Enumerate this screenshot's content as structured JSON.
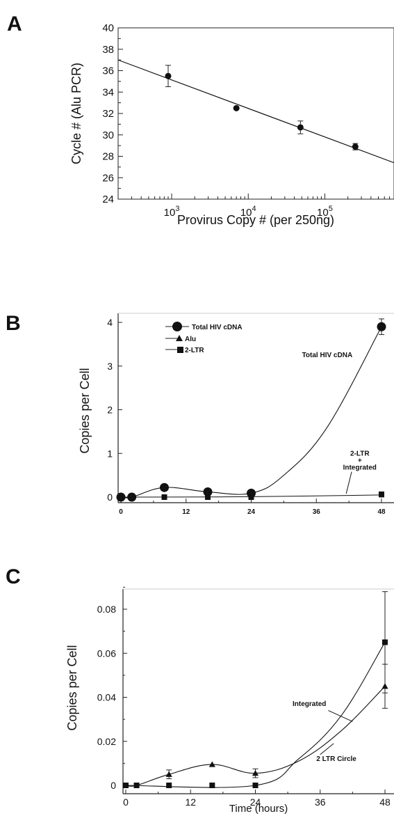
{
  "chart_data": [
    {
      "panel": "A",
      "type": "scatter",
      "xscale": "log",
      "xlabel": "Provirus Copy # (per 250ng)",
      "ylabel": "Cycle # (Alu PCR)",
      "xlim": [
        200,
        800000
      ],
      "ylim": [
        24,
        40
      ],
      "xtick_labels": [
        "10^3",
        "10^4",
        "10^5"
      ],
      "xtick_values": [
        1000,
        10000,
        100000
      ],
      "ytick_values": [
        24,
        26,
        28,
        30,
        32,
        34,
        36,
        38,
        40
      ],
      "points": [
        {
          "x": 900,
          "y": 35.5,
          "err": 1.0
        },
        {
          "x": 7000,
          "y": 32.5,
          "err": 0
        },
        {
          "x": 48000,
          "y": 30.7,
          "err": 0.6
        },
        {
          "x": 250000,
          "y": 28.9,
          "err": 0.3
        }
      ],
      "fit_line": {
        "x": [
          200,
          800000
        ],
        "y": [
          37.0,
          27.4
        ]
      }
    },
    {
      "panel": "B",
      "type": "line",
      "ylabel": "Copies per Cell",
      "xlim": [
        0,
        48
      ],
      "ylim": [
        0,
        4.2
      ],
      "xtick_values": [
        0,
        12,
        24,
        36,
        48
      ],
      "ytick_values": [
        0,
        1,
        2,
        3,
        4
      ],
      "legend_position": "top-left",
      "series": [
        {
          "name": "Total HIV cDNA",
          "marker": "circle",
          "x": [
            0,
            2,
            8,
            16,
            24,
            48
          ],
          "y": [
            0,
            0,
            0.22,
            0.12,
            0.09,
            3.9
          ],
          "err": [
            0,
            0,
            0,
            0,
            0,
            0.18
          ]
        },
        {
          "name": "Alu",
          "marker": "triangle",
          "x": [
            0,
            2,
            8,
            16,
            24,
            48
          ],
          "y": [
            0,
            0,
            0.005,
            0.009,
            0.005,
            0.045
          ],
          "err": [
            0,
            0,
            0,
            0,
            0,
            0
          ]
        },
        {
          "name": "2-LTR",
          "marker": "square",
          "x": [
            0,
            2,
            8,
            16,
            24,
            48
          ],
          "y": [
            0,
            0,
            0,
            0,
            0,
            0.065
          ],
          "err": [
            0,
            0,
            0,
            0,
            0,
            0
          ]
        }
      ],
      "annotations": [
        {
          "text": "Total HIV cDNA",
          "anchor": {
            "x": 38,
            "y": 3.2
          }
        },
        {
          "text": "2-LTR",
          "anchor": {
            "x": 44,
            "y": 0.95
          }
        },
        {
          "text": "+",
          "anchor": {
            "x": 44,
            "y": 0.79
          }
        },
        {
          "text": "Integrated",
          "anchor": {
            "x": 44,
            "y": 0.63
          }
        }
      ]
    },
    {
      "panel": "C",
      "type": "line",
      "xlabel": "Time (hours)",
      "ylabel": "Copies per Cell",
      "xlim": [
        -1,
        49
      ],
      "ylim": [
        -0.003,
        0.09
      ],
      "xtick_values": [
        0,
        12,
        24,
        36,
        48
      ],
      "ytick_values": [
        0,
        0.02,
        0.04,
        0.06,
        0.08
      ],
      "ytick_labels": [
        "0",
        "0.02",
        "0.04",
        "0.06",
        "0.08"
      ],
      "series": [
        {
          "name": "Integrated",
          "marker": "square",
          "x": [
            0,
            2,
            8,
            16,
            24,
            48
          ],
          "y": [
            0,
            0,
            0,
            0,
            0,
            0.065
          ],
          "err": [
            0,
            0,
            0,
            0,
            0,
            0.023
          ]
        },
        {
          "name": "2 LTR Circle",
          "marker": "triangle",
          "x": [
            0,
            2,
            8,
            16,
            24,
            48
          ],
          "y": [
            0,
            0,
            0.005,
            0.0095,
            0.0055,
            0.045
          ],
          "err": [
            0,
            0,
            0.002,
            0,
            0.002,
            0.01
          ]
        }
      ],
      "annotations": [
        {
          "text": "Integrated",
          "anchor": {
            "x": 34,
            "y": 0.036
          }
        },
        {
          "text": "2 LTR Circle",
          "anchor": {
            "x": 39,
            "y": 0.011
          }
        }
      ]
    }
  ],
  "panels": {
    "a": "A",
    "b": "B",
    "c": "C"
  },
  "legend_b": [
    "Total HIV cDNA",
    "Alu",
    "2-LTR"
  ]
}
